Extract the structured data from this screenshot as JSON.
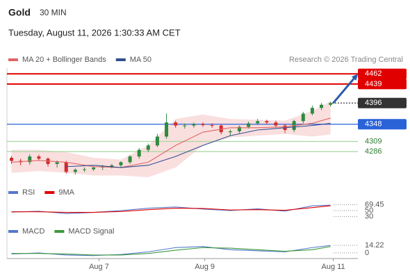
{
  "header": {
    "title": "Gold",
    "interval": "30 MIN",
    "timestamp": "Tuesday, August 11, 2026 1:30:33 AM CET",
    "credit": "Research © 2026 Trading Central"
  },
  "chart_data": [
    {
      "type": "candlestick",
      "xlim": [
        -0.5,
        38
      ],
      "ylim": [
        4217,
        4475
      ],
      "candles": {
        "up_color": "#2e8b3e",
        "down_color": "#d42a2a",
        "open": [
          4272,
          4265,
          4262,
          4275,
          4270,
          4258,
          4262,
          4240,
          4245,
          4246,
          4250,
          4252,
          4255,
          4262,
          4275,
          4290,
          4300,
          4320,
          4352,
          4345,
          4345,
          4348,
          4346,
          4345,
          4330,
          4332,
          4342,
          4350,
          4355,
          4352,
          4345,
          4335,
          4355,
          4372,
          4385,
          4392
        ],
        "high": [
          4276,
          4270,
          4280,
          4279,
          4273,
          4266,
          4265,
          4248,
          4250,
          4252,
          4256,
          4258,
          4264,
          4278,
          4294,
          4304,
          4326,
          4372,
          4356,
          4350,
          4352,
          4352,
          4350,
          4348,
          4336,
          4345,
          4354,
          4360,
          4358,
          4356,
          4348,
          4358,
          4376,
          4390,
          4396,
          4399
        ],
        "low": [
          4258,
          4255,
          4256,
          4265,
          4252,
          4250,
          4236,
          4234,
          4240,
          4242,
          4244,
          4248,
          4250,
          4258,
          4270,
          4285,
          4296,
          4315,
          4340,
          4338,
          4340,
          4342,
          4340,
          4325,
          4322,
          4328,
          4338,
          4346,
          4348,
          4340,
          4328,
          4330,
          4350,
          4368,
          4380,
          4388
        ],
        "close": [
          4265,
          4262,
          4275,
          4270,
          4258,
          4262,
          4240,
          4245,
          4246,
          4250,
          4252,
          4255,
          4262,
          4275,
          4290,
          4300,
          4320,
          4352,
          4345,
          4345,
          4348,
          4346,
          4345,
          4330,
          4332,
          4342,
          4350,
          4355,
          4352,
          4345,
          4335,
          4355,
          4372,
          4385,
          4392,
          4396
        ]
      },
      "series": [
        {
          "name": "MA 20 + Bollinger Bands",
          "color": "#e06666",
          "band_color": "#f6c9c9",
          "x": [
            0,
            3,
            6,
            9,
            12,
            15,
            18,
            21,
            24,
            27,
            30,
            33,
            35
          ],
          "values": [
            4262,
            4266,
            4262,
            4252,
            4250,
            4262,
            4300,
            4330,
            4340,
            4340,
            4342,
            4350,
            4362
          ],
          "upper": [
            4290,
            4290,
            4285,
            4272,
            4268,
            4300,
            4360,
            4370,
            4360,
            4358,
            4356,
            4378,
            4400
          ],
          "lower": [
            4238,
            4242,
            4238,
            4232,
            4232,
            4228,
            4250,
            4300,
            4318,
            4322,
            4326,
            4320,
            4325
          ]
        },
        {
          "name": "MA 50",
          "color": "#2f4f8f",
          "x": [
            0,
            3,
            6,
            9,
            12,
            15,
            18,
            21,
            24,
            27,
            30,
            33,
            35
          ],
          "values": [
            null,
            null,
            4252,
            4255,
            4250,
            4255,
            4275,
            4300,
            4322,
            4335,
            4340,
            4345,
            4350
          ]
        }
      ],
      "levels": [
        {
          "value": 4462,
          "color": "#e00000",
          "text_color": "#ffffff",
          "box": "#e00000",
          "dash": false
        },
        {
          "value": 4439,
          "color": "#e00000",
          "text_color": "#ffffff",
          "box": "#e00000",
          "dash": false
        },
        {
          "value": 4396,
          "color": "#333333",
          "text_color": "#ffffff",
          "box": "#333333",
          "dash": true
        },
        {
          "value": 4348,
          "color": "#2a62d8",
          "text_color": "#ffffff",
          "box": "#2a62d8",
          "dash": false
        },
        {
          "value": 4309,
          "color": "#a8d5a0",
          "text_color": "#2e7d32",
          "box": null,
          "dash": false
        },
        {
          "value": 4286,
          "color": "#a8d5a0",
          "text_color": "#2e7d32",
          "box": null,
          "dash": false
        }
      ],
      "arrow": {
        "x": [
          35.3,
          38
        ],
        "y": [
          4396,
          4462
        ],
        "color": "#2a5ca8"
      }
    },
    {
      "type": "line",
      "xlim": [
        -0.5,
        38
      ],
      "ylim": [
        20,
        80
      ],
      "yticks": [
        69.45,
        50,
        30
      ],
      "series": [
        {
          "name": "RSI",
          "color": "#5577cc",
          "x": [
            0,
            3,
            6,
            9,
            12,
            15,
            18,
            21,
            24,
            27,
            30,
            33,
            35
          ],
          "values": [
            45,
            48,
            40,
            44,
            50,
            58,
            62,
            55,
            50,
            56,
            48,
            66,
            68
          ]
        },
        {
          "name": "9MA",
          "color": "#e00000",
          "x": [
            0,
            3,
            6,
            9,
            12,
            15,
            18,
            21,
            24,
            27,
            30,
            33,
            35
          ],
          "values": [
            46,
            46,
            44,
            44,
            47,
            53,
            58,
            57,
            52,
            53,
            51,
            60,
            66
          ]
        }
      ]
    },
    {
      "type": "line",
      "xlim": [
        -0.5,
        38
      ],
      "ylim": [
        -8,
        30
      ],
      "yticks": [
        14.22,
        0
      ],
      "xticks": [
        {
          "value": 9.6,
          "label": "Aug 7"
        },
        {
          "value": 21.2,
          "label": "Aug 9"
        },
        {
          "value": 35.3,
          "label": "Aug 11"
        }
      ],
      "series": [
        {
          "name": "MACD",
          "color": "#5577cc",
          "x": [
            0,
            3,
            6,
            9,
            12,
            15,
            18,
            21,
            24,
            27,
            30,
            33,
            35
          ],
          "values": [
            -2,
            0,
            -4,
            -5,
            -3,
            2,
            10,
            12,
            6,
            4,
            2,
            10,
            14
          ]
        },
        {
          "name": "MACD Signal",
          "color": "#3c9a3c",
          "x": [
            0,
            3,
            6,
            9,
            12,
            15,
            18,
            21,
            24,
            27,
            30,
            33,
            35
          ],
          "values": [
            -1,
            -1,
            -2,
            -4,
            -4,
            -1,
            5,
            10,
            9,
            6,
            3,
            6,
            12
          ]
        }
      ]
    }
  ]
}
